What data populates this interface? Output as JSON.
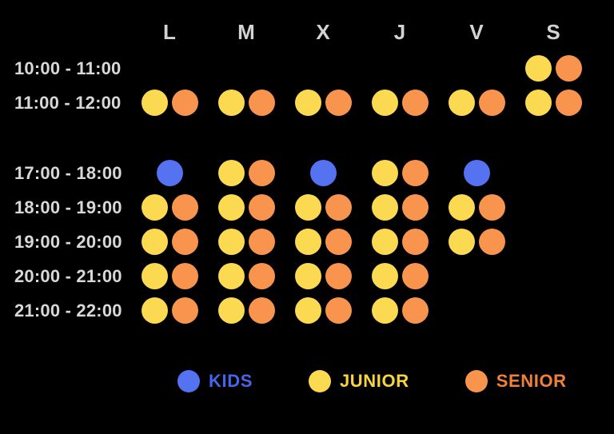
{
  "chart_data": {
    "type": "table",
    "columns": [
      "L",
      "M",
      "X",
      "J",
      "V",
      "S"
    ],
    "rows": [
      {
        "time": "10:00 - 11:00",
        "gap_before": false,
        "cells": [
          [],
          [],
          [],
          [],
          [],
          [
            "JUNIOR",
            "SENIOR"
          ]
        ]
      },
      {
        "time": "11:00 - 12:00",
        "gap_before": false,
        "cells": [
          [
            "JUNIOR",
            "SENIOR"
          ],
          [
            "JUNIOR",
            "SENIOR"
          ],
          [
            "JUNIOR",
            "SENIOR"
          ],
          [
            "JUNIOR",
            "SENIOR"
          ],
          [
            "JUNIOR",
            "SENIOR"
          ],
          [
            "JUNIOR",
            "SENIOR"
          ]
        ]
      },
      {
        "time": "17:00 - 18:00",
        "gap_before": true,
        "cells": [
          [
            "KIDS"
          ],
          [
            "JUNIOR",
            "SENIOR"
          ],
          [
            "KIDS"
          ],
          [
            "JUNIOR",
            "SENIOR"
          ],
          [
            "KIDS"
          ],
          []
        ]
      },
      {
        "time": "18:00 - 19:00",
        "gap_before": false,
        "cells": [
          [
            "JUNIOR",
            "SENIOR"
          ],
          [
            "JUNIOR",
            "SENIOR"
          ],
          [
            "JUNIOR",
            "SENIOR"
          ],
          [
            "JUNIOR",
            "SENIOR"
          ],
          [
            "JUNIOR",
            "SENIOR"
          ],
          []
        ]
      },
      {
        "time": "19:00 - 20:00",
        "gap_before": false,
        "cells": [
          [
            "JUNIOR",
            "SENIOR"
          ],
          [
            "JUNIOR",
            "SENIOR"
          ],
          [
            "JUNIOR",
            "SENIOR"
          ],
          [
            "JUNIOR",
            "SENIOR"
          ],
          [
            "JUNIOR",
            "SENIOR"
          ],
          []
        ]
      },
      {
        "time": "20:00 - 21:00",
        "gap_before": false,
        "cells": [
          [
            "JUNIOR",
            "SENIOR"
          ],
          [
            "JUNIOR",
            "SENIOR"
          ],
          [
            "JUNIOR",
            "SENIOR"
          ],
          [
            "JUNIOR",
            "SENIOR"
          ],
          [],
          []
        ]
      },
      {
        "time": "21:00 - 22:00",
        "gap_before": false,
        "cells": [
          [
            "JUNIOR",
            "SENIOR"
          ],
          [
            "JUNIOR",
            "SENIOR"
          ],
          [
            "JUNIOR",
            "SENIOR"
          ],
          [
            "JUNIOR",
            "SENIOR"
          ],
          [],
          []
        ]
      }
    ],
    "legend": [
      {
        "label": "KIDS",
        "dot_color": "#5572F1",
        "text_color": "#4566EA"
      },
      {
        "label": "JUNIOR",
        "dot_color": "#FBD951",
        "text_color": "#F8D43E"
      },
      {
        "label": "SENIOR",
        "dot_color": "#F9944E",
        "text_color": "#F08138"
      }
    ],
    "legend_position": "bottom"
  },
  "colors": {
    "background": "#000000",
    "day_header_text": "#D3D3D3",
    "time_label_text": "#D8D8D8",
    "kids_dot": "#5572F1",
    "junior_dot": "#FBD951",
    "senior_dot": "#F9944E"
  }
}
